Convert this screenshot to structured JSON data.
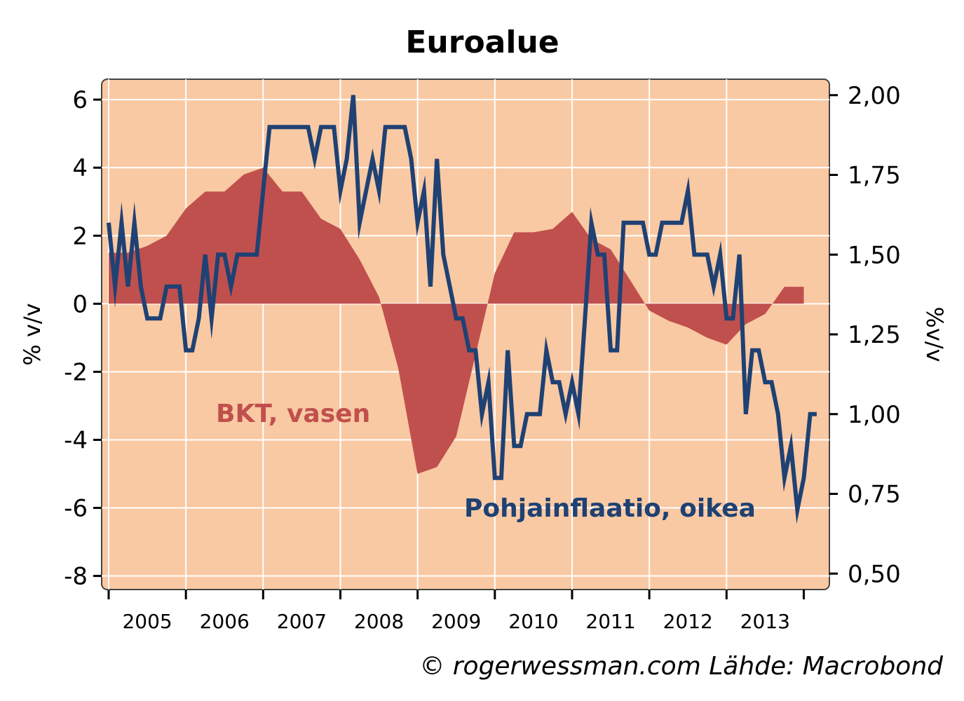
{
  "chart_data": {
    "type": "line",
    "title": "Euroalue",
    "ylabel_left": "% v/v",
    "ylabel_right": "%v/v",
    "ylim_left": [
      -8.4,
      6.6
    ],
    "ylim_right": [
      0.45,
      2.05
    ],
    "yticks_left": [
      "6",
      "4",
      "2",
      "0",
      "-2",
      "-4",
      "-6",
      "-8"
    ],
    "yticks_right": [
      "2,00",
      "1,75",
      "1,50",
      "1,25",
      "1,00",
      "0,75",
      "0,50"
    ],
    "xticks": [
      "2005",
      "2006",
      "2007",
      "2008",
      "2009",
      "2010",
      "2011",
      "2012",
      "2013"
    ],
    "xlim": [
      2004.0,
      2013.25
    ],
    "grid": true,
    "background": "#f9c9a3",
    "annotations": {
      "gdp": "BKT, vasen",
      "core": "Pohjainflaatio, oikea"
    },
    "credit": "© rogerwessman.com Lähde: Macrobond",
    "series": [
      {
        "name": "BKT, vasen",
        "axis": "left",
        "type": "area",
        "color": "#c0504d",
        "x": [
          2004.0,
          2004.25,
          2004.5,
          2004.75,
          2005.0,
          2005.25,
          2005.5,
          2005.75,
          2006.0,
          2006.25,
          2006.5,
          2006.75,
          2007.0,
          2007.25,
          2007.5,
          2007.75,
          2008.0,
          2008.25,
          2008.5,
          2008.75,
          2009.0,
          2009.25,
          2009.5,
          2009.75,
          2010.0,
          2010.25,
          2010.5,
          2010.75,
          2011.0,
          2011.25,
          2011.5,
          2011.75,
          2012.0,
          2012.25,
          2012.5,
          2012.75,
          2013.0
        ],
        "values": [
          1.5,
          1.5,
          1.7,
          2.0,
          2.8,
          3.3,
          3.3,
          3.8,
          4.0,
          3.3,
          3.3,
          2.5,
          2.2,
          1.3,
          0.2,
          -1.9,
          -5.0,
          -4.8,
          -3.9,
          -1.5,
          0.9,
          2.1,
          2.1,
          2.2,
          2.7,
          1.9,
          1.6,
          0.7,
          -0.2,
          -0.5,
          -0.7,
          -1.0,
          -1.2,
          -0.6,
          -0.3,
          0.5,
          0.5
        ]
      },
      {
        "name": "Pohjainflaatio, oikea",
        "axis": "right",
        "type": "line",
        "color": "#1f4173",
        "x": [
          2004.0,
          2004.083,
          2004.167,
          2004.25,
          2004.333,
          2004.417,
          2004.5,
          2004.583,
          2004.667,
          2004.75,
          2004.833,
          2004.917,
          2005.0,
          2005.083,
          2005.167,
          2005.25,
          2005.333,
          2005.417,
          2005.5,
          2005.583,
          2005.667,
          2005.75,
          2005.833,
          2005.917,
          2006.0,
          2006.083,
          2006.167,
          2006.25,
          2006.333,
          2006.417,
          2006.5,
          2006.583,
          2006.667,
          2006.75,
          2006.833,
          2006.917,
          2007.0,
          2007.083,
          2007.167,
          2007.25,
          2007.333,
          2007.417,
          2007.5,
          2007.583,
          2007.667,
          2007.75,
          2007.833,
          2007.917,
          2008.0,
          2008.083,
          2008.167,
          2008.25,
          2008.333,
          2008.417,
          2008.5,
          2008.583,
          2008.667,
          2008.75,
          2008.833,
          2008.917,
          2009.0,
          2009.083,
          2009.167,
          2009.25,
          2009.333,
          2009.417,
          2009.5,
          2009.583,
          2009.667,
          2009.75,
          2009.833,
          2009.917,
          2010.0,
          2010.083,
          2010.167,
          2010.25,
          2010.333,
          2010.417,
          2010.5,
          2010.583,
          2010.667,
          2010.75,
          2010.833,
          2010.917,
          2011.0,
          2011.083,
          2011.167,
          2011.25,
          2011.333,
          2011.417,
          2011.5,
          2011.583,
          2011.667,
          2011.75,
          2011.833,
          2011.917,
          2012.0,
          2012.083,
          2012.167,
          2012.25,
          2012.333,
          2012.417,
          2012.5,
          2012.583,
          2012.667,
          2012.75,
          2012.833,
          2012.917,
          2013.0,
          2013.083,
          2013.167
        ],
        "values": [
          1.6,
          1.4,
          1.6,
          1.4,
          1.6,
          1.4,
          1.3,
          1.3,
          1.3,
          1.4,
          1.4,
          1.4,
          1.2,
          1.2,
          1.3,
          1.5,
          1.3,
          1.5,
          1.5,
          1.4,
          1.5,
          1.5,
          1.5,
          1.5,
          1.7,
          1.9,
          1.9,
          1.9,
          1.9,
          1.9,
          1.9,
          1.9,
          1.8,
          1.9,
          1.9,
          1.9,
          1.7,
          1.8,
          2.0,
          1.6,
          1.7,
          1.8,
          1.7,
          1.9,
          1.9,
          1.9,
          1.9,
          1.8,
          1.6,
          1.7,
          1.4,
          1.8,
          1.5,
          1.4,
          1.3,
          1.3,
          1.2,
          1.2,
          1.0,
          1.1,
          0.8,
          0.8,
          1.2,
          0.9,
          0.9,
          1.0,
          1.0,
          1.0,
          1.2,
          1.1,
          1.1,
          1.0,
          1.1,
          1.0,
          1.3,
          1.6,
          1.5,
          1.5,
          1.2,
          1.2,
          1.6,
          1.6,
          1.6,
          1.6,
          1.5,
          1.5,
          1.6,
          1.6,
          1.6,
          1.6,
          1.7,
          1.5,
          1.5,
          1.5,
          1.4,
          1.5,
          1.3,
          1.3,
          1.5,
          1.0,
          1.2,
          1.2,
          1.1,
          1.1,
          1.0,
          0.8,
          0.9,
          0.7,
          0.8,
          1.0,
          1.0
        ]
      }
    ]
  }
}
